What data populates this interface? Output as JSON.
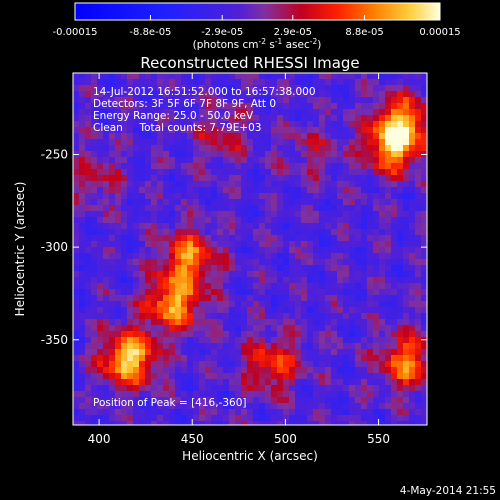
{
  "colorbar": {
    "tick_labels": [
      "-0.00015",
      "-8.8e-05",
      "-2.9e-05",
      "2.9e-05",
      "8.8e-05",
      "0.00015"
    ],
    "tick_values": [
      -0.00015,
      -8.8e-05,
      -2.9e-05,
      2.9e-05,
      8.8e-05,
      0.00015
    ],
    "range": [
      -0.00015,
      0.00015
    ],
    "units_prefix": "(photons cm",
    "units_exp1": "-2",
    "units_mid": " s",
    "units_exp2": "-1",
    "units_mid2": " asec",
    "units_exp3": "-2",
    "units_suffix": ")"
  },
  "chart_data": {
    "type": "heatmap",
    "title": "Reconstructed RHESSI Image",
    "xlabel": "Heliocentric X (arcsec)",
    "ylabel": "Heliocentric Y (arcsec)",
    "xlim": [
      386,
      576
    ],
    "ylim": [
      -396,
      -206
    ],
    "xticks": [
      400,
      450,
      500,
      550
    ],
    "yticks": [
      -250,
      -300,
      -350
    ],
    "xtick_labels": [
      "400",
      "450",
      "500",
      "550"
    ],
    "ytick_labels": [
      "-250",
      "-300",
      "-350"
    ],
    "sources": [
      {
        "x": 416,
        "y": -360,
        "peak": 0.00015
      },
      {
        "x": 440,
        "y": -330,
        "peak": 0.00013
      },
      {
        "x": 448,
        "y": -305,
        "peak": 0.00011
      },
      {
        "x": 557,
        "y": -245,
        "peak": 0.00013
      },
      {
        "x": 564,
        "y": -232,
        "peak": 0.0001
      },
      {
        "x": 565,
        "y": -362,
        "peak": 0.00011
      },
      {
        "x": 493,
        "y": -363,
        "peak": 9e-05
      },
      {
        "x": 466,
        "y": -240,
        "peak": 5e-05
      },
      {
        "x": 398,
        "y": -262,
        "peak": 5e-05
      },
      {
        "x": 513,
        "y": -248,
        "peak": 4e-05
      }
    ],
    "annotations": {
      "line1": "14-Jul-2012 16:51:52.000 to 16:57:38.000",
      "line2": "Detectors: 3F 5F 6F 7F 8F 9F, Att 0",
      "line3": "Energy Range: 25.0 - 50.0 keV",
      "line4": "Clean     Total counts: 7.79E+03",
      "peak_text": "Position of Peak = [416,-360]"
    }
  },
  "footer": {
    "date": "4-May-2014 21:55"
  }
}
